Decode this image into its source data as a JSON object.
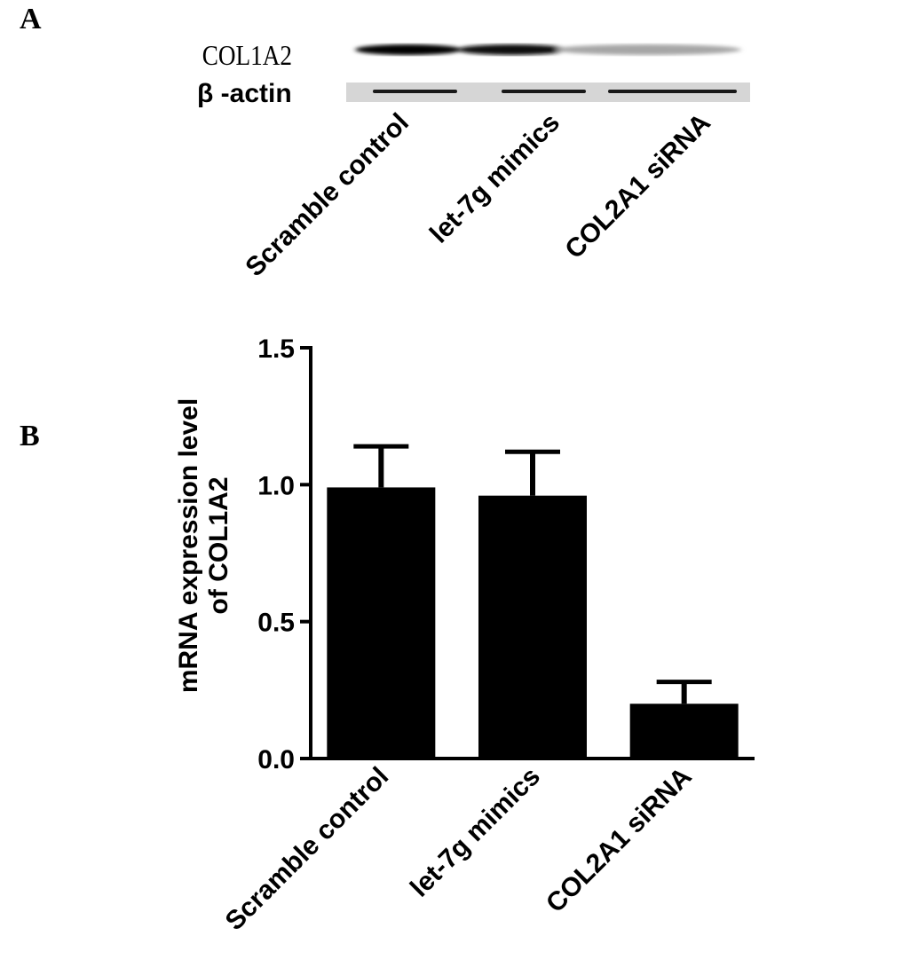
{
  "panels": {
    "a": "A",
    "b": "B"
  },
  "blot": {
    "rows": [
      "COL1A2",
      "β -actin"
    ],
    "lanes": [
      "Scramble control",
      "let-7g mimics",
      "COL2A1 siRNA"
    ],
    "col1a2_intensity": [
      1.0,
      0.95,
      0.35
    ],
    "actin_intensity": [
      0.9,
      0.9,
      0.9
    ]
  },
  "chart_data": {
    "type": "bar",
    "categories": [
      "Scramble control",
      "let-7g mimics",
      "COL2A1 siRNA"
    ],
    "values": [
      0.99,
      0.96,
      0.2
    ],
    "errors": [
      0.15,
      0.16,
      0.08
    ],
    "ylabel": [
      "mRNA expression level",
      "of COL1A2"
    ],
    "xlabel": "",
    "ylim": [
      0,
      1.5
    ],
    "yticks": [
      "0.0",
      "0.5",
      "1.0",
      "1.5"
    ],
    "grid": false
  }
}
